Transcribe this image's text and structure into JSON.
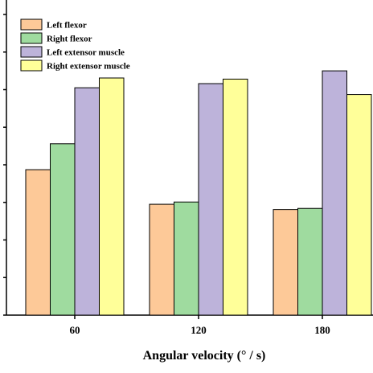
{
  "chart_data": {
    "type": "bar",
    "title": "",
    "xlabel": "Angular velocity (° / s)",
    "ylabel": "",
    "categories": [
      "60",
      "120",
      "180"
    ],
    "ylim": [
      0,
      8
    ],
    "y_ticks_shown": false,
    "grid": false,
    "legend": "top-left",
    "series": [
      {
        "name": "Left flexor",
        "color": "#FDC998",
        "values": [
          3.87,
          2.95,
          2.81
        ]
      },
      {
        "name": "Right flexor",
        "color": "#9FDB9F",
        "values": [
          4.56,
          3.01,
          2.84
        ]
      },
      {
        "name": "Left extensor muscle",
        "color": "#BDB3DA",
        "values": [
          6.05,
          6.16,
          6.5
        ]
      },
      {
        "name": "Right extensor muscle",
        "color": "#FFFF99",
        "values": [
          6.31,
          6.28,
          5.87
        ]
      }
    ]
  }
}
